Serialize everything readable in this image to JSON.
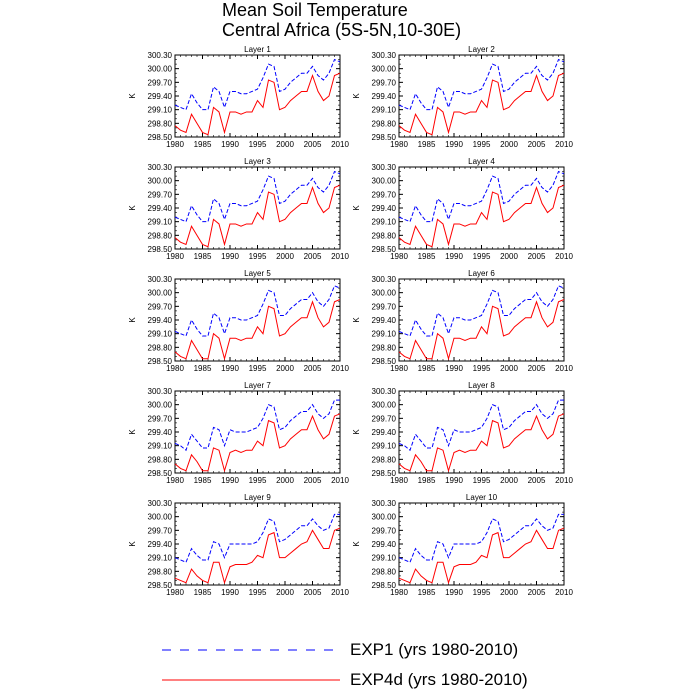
{
  "title": {
    "line1": "Mean Soil Temperature",
    "line2": "Central Africa (5S-5N,10-30E)"
  },
  "legend": {
    "exp1": "EXP1 (yrs 1980-2010)",
    "exp4d": "EXP4d (yrs 1980-2010)"
  },
  "colors": {
    "exp1": "#0000ff",
    "exp4d": "#ff0000"
  },
  "chart_data": {
    "type": "line",
    "panel_count": 10,
    "ylabel": "K",
    "ylim": [
      298.5,
      300.3
    ],
    "yticks": [
      "298.50",
      "298.80",
      "299.10",
      "299.40",
      "299.70",
      "300.00",
      "300.30"
    ],
    "xlim": [
      1980,
      2010
    ],
    "xticks": [
      "1980",
      "1985",
      "1990",
      "1995",
      "2000",
      "2005",
      "2010"
    ],
    "grid": false,
    "legend_position": "bottom",
    "x": [
      1980,
      1981,
      1982,
      1983,
      1984,
      1985,
      1986,
      1987,
      1988,
      1989,
      1990,
      1991,
      1992,
      1993,
      1994,
      1995,
      1996,
      1997,
      1998,
      1999,
      2000,
      2001,
      2002,
      2003,
      2004,
      2005,
      2006,
      2007,
      2008,
      2009,
      2010
    ],
    "panels": [
      {
        "title": "Layer 1",
        "series": [
          {
            "name": "EXP1 (yrs 1980-2010)",
            "style": "dashed",
            "values": [
              299.2,
              299.15,
              299.1,
              299.45,
              299.25,
              299.1,
              299.1,
              299.6,
              299.5,
              299.15,
              299.5,
              299.5,
              299.45,
              299.45,
              299.5,
              299.55,
              299.8,
              300.1,
              300.05,
              299.5,
              299.55,
              299.7,
              299.8,
              299.9,
              299.9,
              300.05,
              299.85,
              299.75,
              299.9,
              300.2,
              300.15
            ]
          },
          {
            "name": "EXP4d (yrs 1980-2010)",
            "style": "solid",
            "values": [
              298.75,
              298.65,
              298.6,
              299.0,
              298.8,
              298.6,
              298.55,
              299.15,
              299.05,
              298.6,
              299.05,
              299.05,
              299.0,
              299.05,
              299.05,
              299.3,
              299.15,
              299.75,
              299.7,
              299.1,
              299.15,
              299.3,
              299.4,
              299.5,
              299.5,
              299.85,
              299.5,
              299.3,
              299.4,
              299.85,
              299.9
            ]
          }
        ]
      },
      {
        "title": "Layer 2",
        "series": [
          {
            "name": "EXP1 (yrs 1980-2010)",
            "style": "dashed",
            "values": [
              299.2,
              299.15,
              299.1,
              299.45,
              299.25,
              299.1,
              299.1,
              299.6,
              299.5,
              299.15,
              299.5,
              299.5,
              299.45,
              299.45,
              299.5,
              299.55,
              299.8,
              300.1,
              300.05,
              299.5,
              299.55,
              299.7,
              299.8,
              299.9,
              299.9,
              300.05,
              299.85,
              299.75,
              299.9,
              300.2,
              300.15
            ]
          },
          {
            "name": "EXP4d (yrs 1980-2010)",
            "style": "solid",
            "values": [
              298.75,
              298.65,
              298.6,
              299.0,
              298.8,
              298.6,
              298.55,
              299.15,
              299.05,
              298.6,
              299.05,
              299.05,
              299.0,
              299.05,
              299.05,
              299.3,
              299.15,
              299.75,
              299.7,
              299.1,
              299.15,
              299.3,
              299.4,
              299.5,
              299.5,
              299.85,
              299.5,
              299.3,
              299.4,
              299.85,
              299.9
            ]
          }
        ]
      },
      {
        "title": "Layer 3",
        "series": [
          {
            "name": "EXP1 (yrs 1980-2010)",
            "style": "dashed",
            "values": [
              299.2,
              299.15,
              299.1,
              299.45,
              299.25,
              299.1,
              299.1,
              299.6,
              299.5,
              299.15,
              299.5,
              299.5,
              299.45,
              299.45,
              299.5,
              299.55,
              299.8,
              300.1,
              300.05,
              299.5,
              299.55,
              299.7,
              299.8,
              299.9,
              299.9,
              300.05,
              299.85,
              299.75,
              299.9,
              300.2,
              300.15
            ]
          },
          {
            "name": "EXP4d (yrs 1980-2010)",
            "style": "solid",
            "values": [
              298.75,
              298.65,
              298.6,
              299.0,
              298.8,
              298.6,
              298.55,
              299.15,
              299.05,
              298.6,
              299.05,
              299.05,
              299.0,
              299.05,
              299.05,
              299.3,
              299.15,
              299.75,
              299.7,
              299.1,
              299.15,
              299.3,
              299.4,
              299.5,
              299.5,
              299.85,
              299.5,
              299.3,
              299.4,
              299.85,
              299.9
            ]
          }
        ]
      },
      {
        "title": "Layer 4",
        "series": [
          {
            "name": "EXP1 (yrs 1980-2010)",
            "style": "dashed",
            "values": [
              299.2,
              299.15,
              299.1,
              299.45,
              299.25,
              299.1,
              299.1,
              299.6,
              299.5,
              299.15,
              299.5,
              299.5,
              299.45,
              299.45,
              299.5,
              299.55,
              299.8,
              300.1,
              300.05,
              299.5,
              299.55,
              299.7,
              299.8,
              299.9,
              299.9,
              300.05,
              299.85,
              299.75,
              299.9,
              300.2,
              300.15
            ]
          },
          {
            "name": "EXP4d (yrs 1980-2010)",
            "style": "solid",
            "values": [
              298.75,
              298.65,
              298.6,
              299.0,
              298.8,
              298.6,
              298.55,
              299.15,
              299.05,
              298.6,
              299.05,
              299.05,
              299.0,
              299.05,
              299.05,
              299.3,
              299.15,
              299.75,
              299.7,
              299.1,
              299.15,
              299.3,
              299.4,
              299.5,
              299.5,
              299.85,
              299.5,
              299.3,
              299.4,
              299.85,
              299.9
            ]
          }
        ]
      },
      {
        "title": "Layer 5",
        "series": [
          {
            "name": "EXP1 (yrs 1980-2010)",
            "style": "dashed",
            "values": [
              299.15,
              299.1,
              299.05,
              299.4,
              299.2,
              299.05,
              299.05,
              299.55,
              299.45,
              299.1,
              299.45,
              299.45,
              299.4,
              299.4,
              299.45,
              299.5,
              299.75,
              300.05,
              300.0,
              299.5,
              299.5,
              299.65,
              299.75,
              299.85,
              299.85,
              300.0,
              299.8,
              299.7,
              299.85,
              300.15,
              300.1
            ]
          },
          {
            "name": "EXP4d (yrs 1980-2010)",
            "style": "solid",
            "values": [
              298.7,
              298.6,
              298.55,
              298.95,
              298.75,
              298.55,
              298.55,
              299.1,
              299.0,
              298.55,
              299.0,
              299.0,
              298.95,
              299.0,
              299.0,
              299.25,
              299.1,
              299.7,
              299.65,
              299.05,
              299.1,
              299.25,
              299.35,
              299.45,
              299.45,
              299.8,
              299.45,
              299.25,
              299.35,
              299.8,
              299.85
            ]
          }
        ]
      },
      {
        "title": "Layer 6",
        "series": [
          {
            "name": "EXP1 (yrs 1980-2010)",
            "style": "dashed",
            "values": [
              299.15,
              299.1,
              299.05,
              299.4,
              299.2,
              299.05,
              299.05,
              299.55,
              299.45,
              299.1,
              299.45,
              299.45,
              299.4,
              299.4,
              299.45,
              299.5,
              299.75,
              300.05,
              300.0,
              299.5,
              299.5,
              299.65,
              299.75,
              299.85,
              299.85,
              300.0,
              299.8,
              299.7,
              299.85,
              300.15,
              300.1
            ]
          },
          {
            "name": "EXP4d (yrs 1980-2010)",
            "style": "solid",
            "values": [
              298.7,
              298.6,
              298.55,
              298.95,
              298.75,
              298.55,
              298.55,
              299.1,
              299.0,
              298.55,
              299.0,
              299.0,
              298.95,
              299.0,
              299.0,
              299.25,
              299.1,
              299.7,
              299.65,
              299.05,
              299.1,
              299.25,
              299.35,
              299.45,
              299.45,
              299.8,
              299.45,
              299.25,
              299.35,
              299.8,
              299.85
            ]
          }
        ]
      },
      {
        "title": "Layer 7",
        "series": [
          {
            "name": "EXP1 (yrs 1980-2010)",
            "style": "dashed",
            "values": [
              299.15,
              299.1,
              299.0,
              299.35,
              299.2,
              299.05,
              299.05,
              299.5,
              299.45,
              299.1,
              299.45,
              299.4,
              299.4,
              299.4,
              299.45,
              299.5,
              299.7,
              300.0,
              299.95,
              299.45,
              299.5,
              299.65,
              299.75,
              299.85,
              299.85,
              300.0,
              299.8,
              299.7,
              299.8,
              300.1,
              300.1
            ]
          },
          {
            "name": "EXP4d (yrs 1980-2010)",
            "style": "solid",
            "values": [
              298.7,
              298.6,
              298.55,
              298.9,
              298.75,
              298.55,
              298.55,
              299.05,
              299.0,
              298.55,
              298.95,
              299.0,
              298.95,
              299.0,
              299.0,
              299.2,
              299.1,
              299.65,
              299.6,
              299.05,
              299.1,
              299.25,
              299.35,
              299.45,
              299.45,
              299.75,
              299.45,
              299.25,
              299.35,
              299.75,
              299.8
            ]
          }
        ]
      },
      {
        "title": "Layer 8",
        "series": [
          {
            "name": "EXP1 (yrs 1980-2010)",
            "style": "dashed",
            "values": [
              299.15,
              299.1,
              299.0,
              299.35,
              299.2,
              299.05,
              299.05,
              299.5,
              299.45,
              299.1,
              299.45,
              299.4,
              299.4,
              299.4,
              299.45,
              299.5,
              299.7,
              300.0,
              299.95,
              299.45,
              299.5,
              299.65,
              299.75,
              299.85,
              299.85,
              300.0,
              299.8,
              299.7,
              299.8,
              300.1,
              300.1
            ]
          },
          {
            "name": "EXP4d (yrs 1980-2010)",
            "style": "solid",
            "values": [
              298.7,
              298.6,
              298.55,
              298.9,
              298.75,
              298.55,
              298.55,
              299.05,
              299.0,
              298.55,
              298.95,
              299.0,
              298.95,
              299.0,
              299.0,
              299.2,
              299.1,
              299.65,
              299.6,
              299.05,
              299.1,
              299.25,
              299.35,
              299.45,
              299.45,
              299.75,
              299.45,
              299.25,
              299.35,
              299.75,
              299.8
            ]
          }
        ]
      },
      {
        "title": "Layer 9",
        "series": [
          {
            "name": "EXP1 (yrs 1980-2010)",
            "style": "dashed",
            "values": [
              299.1,
              299.05,
              299.0,
              299.3,
              299.15,
              299.05,
              299.05,
              299.45,
              299.4,
              299.1,
              299.4,
              299.4,
              299.4,
              299.4,
              299.4,
              299.45,
              299.65,
              299.95,
              299.9,
              299.45,
              299.5,
              299.6,
              299.7,
              299.8,
              299.8,
              299.95,
              299.8,
              299.7,
              299.75,
              300.05,
              300.05
            ]
          },
          {
            "name": "EXP4d (yrs 1980-2010)",
            "style": "solid",
            "values": [
              298.65,
              298.6,
              298.55,
              298.85,
              298.7,
              298.6,
              298.55,
              299.0,
              299.0,
              298.55,
              298.9,
              298.95,
              298.95,
              298.95,
              299.0,
              299.15,
              299.1,
              299.6,
              299.65,
              299.1,
              299.1,
              299.2,
              299.3,
              299.4,
              299.45,
              299.7,
              299.5,
              299.3,
              299.3,
              299.7,
              299.75
            ]
          }
        ]
      },
      {
        "title": "Layer 10",
        "series": [
          {
            "name": "EXP1 (yrs 1980-2010)",
            "style": "dashed",
            "values": [
              299.1,
              299.05,
              299.0,
              299.3,
              299.15,
              299.05,
              299.05,
              299.45,
              299.4,
              299.1,
              299.4,
              299.4,
              299.4,
              299.4,
              299.4,
              299.45,
              299.65,
              299.95,
              299.9,
              299.45,
              299.5,
              299.6,
              299.7,
              299.8,
              299.8,
              299.95,
              299.8,
              299.7,
              299.75,
              300.05,
              300.05
            ]
          },
          {
            "name": "EXP4d (yrs 1980-2010)",
            "style": "solid",
            "values": [
              298.65,
              298.6,
              298.55,
              298.85,
              298.7,
              298.6,
              298.55,
              299.0,
              299.0,
              298.55,
              298.9,
              298.95,
              298.95,
              298.95,
              299.0,
              299.15,
              299.1,
              299.6,
              299.65,
              299.1,
              299.1,
              299.2,
              299.3,
              299.4,
              299.45,
              299.7,
              299.5,
              299.3,
              299.3,
              299.7,
              299.75
            ]
          }
        ]
      }
    ]
  }
}
